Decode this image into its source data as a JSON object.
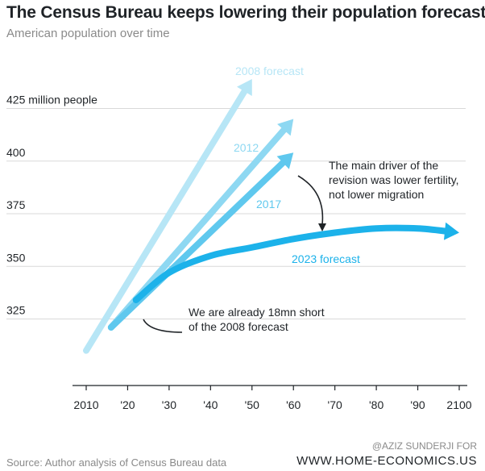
{
  "header": {
    "title": "The Census Bureau keeps lowering their population forecast",
    "subtitle": "American population over time"
  },
  "footer": {
    "source": "Source: Author analysis of Census Bureau data",
    "credit_line1": "@AZIZ SUNDERJI FOR",
    "credit_line2": "WWW.HOME-ECONOMICS.US"
  },
  "colors": {
    "forecast_2008": "#b7e6f6",
    "forecast_2012": "#8ed8f2",
    "forecast_2017": "#5fc8ee",
    "forecast_2023": "#1cb2ea",
    "gridline": "#d9d9d9",
    "text": "#1f2327"
  },
  "chart_data": {
    "type": "line",
    "title": "The Census Bureau keeps lowering their population forecast",
    "subtitle": "American population over time",
    "xlim": [
      2010,
      2100
    ],
    "ylim": [
      310,
      435
    ],
    "x_ticks": [
      2010,
      2020,
      2030,
      2040,
      2050,
      2060,
      2070,
      2080,
      2090,
      2100
    ],
    "x_tick_labels": [
      "2010",
      "'20",
      "'30",
      "'40",
      "'50",
      "'60",
      "'70",
      "'80",
      "'90",
      "2100"
    ],
    "y_ticks": [
      325,
      350,
      375,
      400,
      425
    ],
    "y_tick_labels": [
      "325",
      "350",
      "375",
      "400",
      "425 million people"
    ],
    "grid": true,
    "series": [
      {
        "name": "2008 forecast",
        "x": [
          2010,
          2050
        ],
        "y": [
          310,
          439
        ]
      },
      {
        "name": "2012",
        "x": [
          2016,
          2060
        ],
        "y": [
          321,
          420
        ]
      },
      {
        "name": "2017",
        "x": [
          2016,
          2060
        ],
        "y": [
          321,
          404
        ]
      },
      {
        "name": "2023 forecast",
        "x": [
          2022,
          2030,
          2040,
          2050,
          2060,
          2070,
          2080,
          2090,
          2100
        ],
        "y": [
          334,
          347,
          355,
          359,
          363,
          366,
          368,
          368,
          366
        ]
      }
    ],
    "annotations": [
      {
        "text": [
          "The main driver of the",
          "revision was lower fertility,",
          "not lower migration"
        ]
      },
      {
        "text": [
          "We are already 18mn short",
          "of the 2008 forecast"
        ]
      }
    ]
  }
}
